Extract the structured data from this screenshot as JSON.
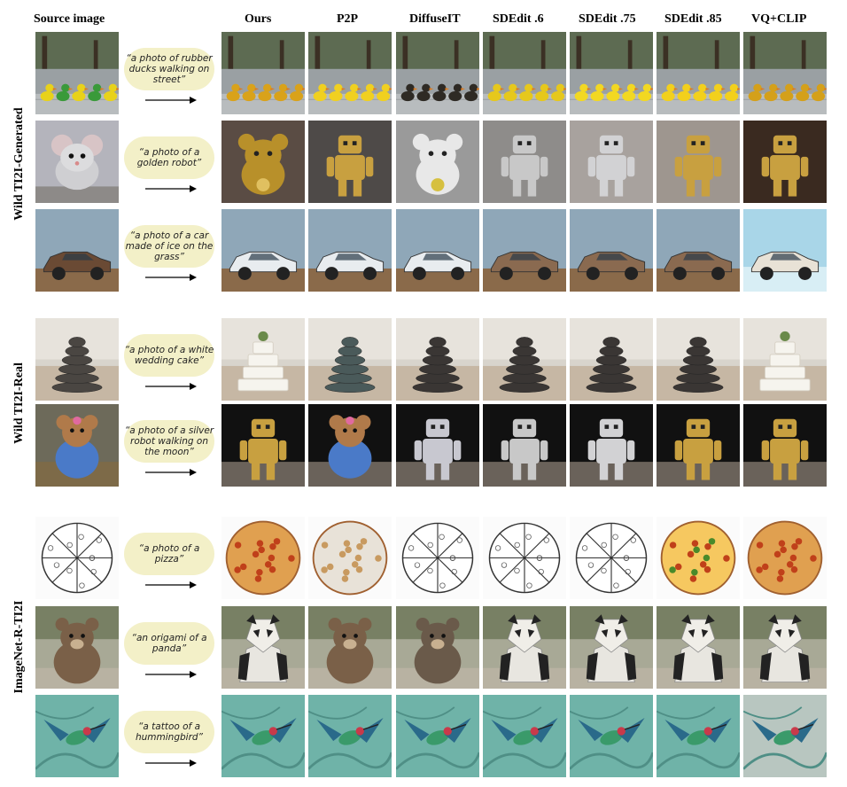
{
  "headers": [
    "Source image",
    "Ours",
    "P2P",
    "DiffuseIT",
    "SDEdit .6",
    "SDEdit .75",
    "SDEdit .85",
    "VQ+CLIP"
  ],
  "sections": [
    "Wild TI2I-Generated",
    "Wild TI2I-Real",
    "ImageNet-R-TI2I"
  ],
  "rows": [
    {
      "prompt": "“a photo of rubber ducks walking on street”",
      "scene": "street",
      "subjects": [
        "duck",
        "duck",
        "duck",
        "duck",
        "duck",
        "duck",
        "duck",
        "duck"
      ]
    },
    {
      "prompt": "“a photo of a golden robot”",
      "scene": "gray",
      "subjects": [
        "mouse",
        "bear",
        "robot",
        "bear",
        "robot",
        "robot",
        "robot",
        "robot"
      ]
    },
    {
      "prompt": "“a photo of a car made of ice on the grass”",
      "scene": "sky",
      "subjects": [
        "car",
        "car",
        "car",
        "car",
        "car",
        "car",
        "car",
        "car"
      ]
    },
    {
      "prompt": "“a photo of a white wedding cake”",
      "scene": "beach",
      "subjects": [
        "stones",
        "cake",
        "stones",
        "stones",
        "stones",
        "stones",
        "stones",
        "cake"
      ]
    },
    {
      "prompt": "“a photo of a silver robot walking on the moon”",
      "scene": "moon",
      "subjects": [
        "teddy",
        "robot",
        "teddy",
        "robot",
        "robot",
        "robot",
        "robot",
        "robot"
      ]
    },
    {
      "prompt": "“a photo of a pizza”",
      "scene": "white",
      "subjects": [
        "sketch",
        "pizza",
        "pizza-pale",
        "sketch",
        "sketch",
        "sketch",
        "pizza-bright",
        "pizza"
      ]
    },
    {
      "prompt": "“an origami of a panda”",
      "scene": "park",
      "subjects": [
        "bear-statue",
        "panda",
        "bear-statue",
        "bear-statue",
        "panda",
        "panda",
        "panda",
        "panda"
      ]
    },
    {
      "prompt": "“a tattoo of a hummingbird”",
      "scene": "teal",
      "subjects": [
        "bird",
        "bird",
        "bird",
        "bird",
        "bird",
        "bird",
        "bird",
        "bird"
      ]
    }
  ],
  "colors": {
    "bubble": "#f3f0c8",
    "text": "#000000"
  }
}
